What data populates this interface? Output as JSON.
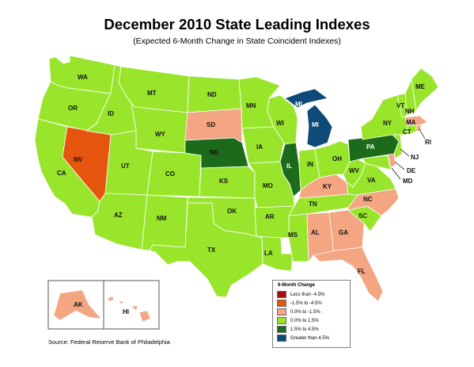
{
  "title": "December 2010 State Leading Indexes",
  "subtitle": "(Expected 6-Month Change in State Coincident Indexes)",
  "source": "Source: Federal Reserve Bank of Philadelphia",
  "legend": {
    "title": "6-Month Change",
    "items": [
      {
        "label": "Less than -4.5%",
        "color": "#a50f15"
      },
      {
        "label": "-1.5% to -4.5%",
        "color": "#e6550d"
      },
      {
        "label": "0.0% to -1.5%",
        "color": "#f4a582"
      },
      {
        "label": "0.0% to  1.5%",
        "color": "#99e52c"
      },
      {
        "label": "1.5% to  4.5%",
        "color": "#1b6b1a"
      },
      {
        "label": "Greater than 4.5%",
        "color": "#0d4a78"
      }
    ]
  },
  "states": {
    "WA": {
      "label": "WA",
      "category": 3
    },
    "OR": {
      "label": "OR",
      "category": 3
    },
    "CA": {
      "label": "CA",
      "category": 3
    },
    "NV": {
      "label": "NV",
      "category": 1
    },
    "ID": {
      "label": "ID",
      "category": 3
    },
    "MT": {
      "label": "MT",
      "category": 3
    },
    "WY": {
      "label": "WY",
      "category": 3
    },
    "UT": {
      "label": "UT",
      "category": 3
    },
    "AZ": {
      "label": "AZ",
      "category": 3
    },
    "CO": {
      "label": "CO",
      "category": 3
    },
    "NM": {
      "label": "NM",
      "category": 3
    },
    "ND": {
      "label": "ND",
      "category": 3
    },
    "SD": {
      "label": "SD",
      "category": 2
    },
    "NE": {
      "label": "NE",
      "category": 4
    },
    "KS": {
      "label": "KS",
      "category": 3
    },
    "OK": {
      "label": "OK",
      "category": 3
    },
    "TX": {
      "label": "TX",
      "category": 3
    },
    "MN": {
      "label": "MN",
      "category": 3
    },
    "IA": {
      "label": "IA",
      "category": 3
    },
    "MO": {
      "label": "MO",
      "category": 3
    },
    "AR": {
      "label": "AR",
      "category": 3
    },
    "LA": {
      "label": "LA",
      "category": 3
    },
    "WI": {
      "label": "WI",
      "category": 3
    },
    "IL": {
      "label": "IL",
      "category": 4
    },
    "MS": {
      "label": "MS",
      "category": 3
    },
    "MI": {
      "label": "MI",
      "category": 5
    },
    "IN": {
      "label": "IN",
      "category": 3
    },
    "KY": {
      "label": "KY",
      "category": 2
    },
    "TN": {
      "label": "TN",
      "category": 3
    },
    "AL": {
      "label": "AL",
      "category": 2
    },
    "GA": {
      "label": "GA",
      "category": 2
    },
    "FL": {
      "label": "FL",
      "category": 2
    },
    "OH": {
      "label": "OH",
      "category": 3
    },
    "WV": {
      "label": "WV",
      "category": 3
    },
    "VA": {
      "label": "VA",
      "category": 3
    },
    "NC": {
      "label": "NC",
      "category": 2
    },
    "SC": {
      "label": "SC",
      "category": 3
    },
    "PA": {
      "label": "PA",
      "category": 4
    },
    "NY": {
      "label": "NY",
      "category": 3
    },
    "VT": {
      "label": "VT",
      "category": 3
    },
    "NH": {
      "label": "NH",
      "category": 3
    },
    "ME": {
      "label": "ME",
      "category": 3
    },
    "MA": {
      "label": "MA",
      "category": 2
    },
    "CT": {
      "label": "CT",
      "category": 3
    },
    "RI": {
      "label": "RI",
      "category": 2
    },
    "NJ": {
      "label": "NJ",
      "category": 3
    },
    "DE": {
      "label": "DE",
      "category": 2
    },
    "MD": {
      "label": "MD",
      "category": 3
    },
    "AK": {
      "label": "AK",
      "category": 2
    },
    "HI": {
      "label": "HI",
      "category": 2
    }
  }
}
